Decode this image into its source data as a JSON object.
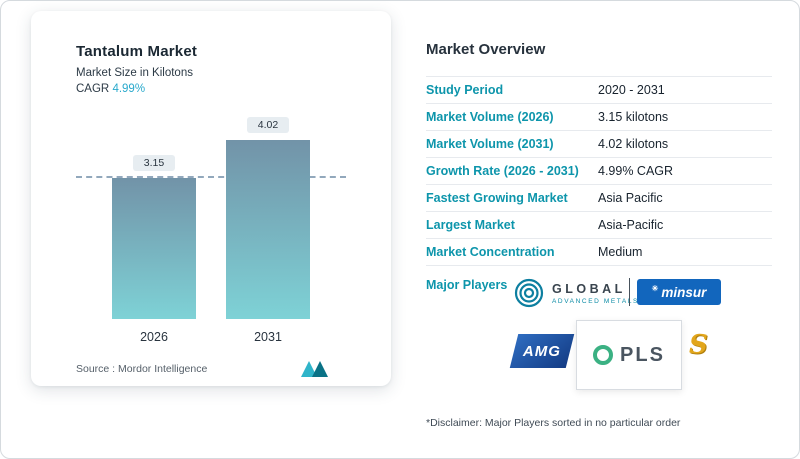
{
  "card": {
    "title": "Tantalum Market",
    "subtitle": "Market Size in Kilotons",
    "cagr_prefix": "CAGR",
    "cagr_value": "4.99%",
    "source": "Source :  Mordor Intelligence"
  },
  "chart_data": {
    "type": "bar",
    "title": "Tantalum Market",
    "ylabel": "Market Size in Kilotons",
    "categories": [
      "2026",
      "2031"
    ],
    "values": [
      3.15,
      4.02
    ],
    "value_labels": [
      "3.15",
      "4.02"
    ],
    "ylim": [
      0,
      4.5
    ],
    "reference_line_at": 3.15,
    "bar_gradient_top": "#7293a8",
    "bar_gradient_bottom": "#7ed2d6",
    "grid": "off",
    "legend": "none"
  },
  "overview": {
    "title": "Market Overview",
    "rows": [
      {
        "label": "Study Period",
        "value": "2020 - 2031"
      },
      {
        "label": "Market Volume (2026)",
        "value": "3.15 kilotons"
      },
      {
        "label": "Market Volume (2031)",
        "value": "4.02 kilotons"
      },
      {
        "label": "Growth Rate (2026 - 2031)",
        "value": "4.99% CAGR"
      },
      {
        "label": "Fastest Growing Market",
        "value": "Asia Pacific"
      },
      {
        "label": "Largest Market",
        "value": "Asia-Pacific"
      },
      {
        "label": "Market Concentration",
        "value": "Medium"
      }
    ],
    "major_players_label": "Major Players",
    "disclaimer": "*Disclaimer: Major Players sorted in no particular order"
  },
  "players": {
    "gam_line1": "GLOBAL",
    "gam_line2": "ADVANCED METALS",
    "minsur": "minsur",
    "minsur_star": "✳",
    "amg": "AMG",
    "pls": "PLS",
    "s": "S"
  },
  "colors": {
    "accent_teal": "#0d95ab",
    "cagr_blue": "#29a9cc",
    "minsur_blue": "#1266bd",
    "amg_blue": "#1e56a0",
    "pls_green": "#3bb183",
    "s_gold": "#e2a61c"
  }
}
